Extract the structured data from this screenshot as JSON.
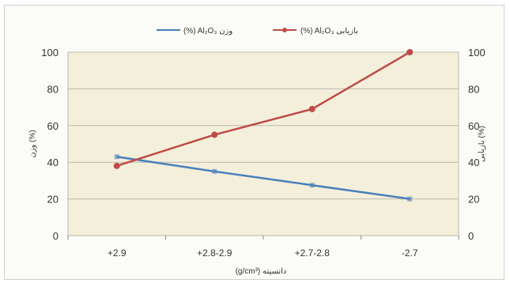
{
  "chart_data": {
    "type": "line",
    "categories": [
      "+2.9",
      "+2.8-2.9",
      "+2.7-2.8",
      "-2.7"
    ],
    "series": [
      {
        "name": "(%) Al₂O₃ وزن",
        "axis": "left",
        "color": "#4a7ebb",
        "values": [
          43,
          35,
          27.5,
          20
        ]
      },
      {
        "name": "(%) Al₂O₃ بازیابی",
        "axis": "right",
        "color": "#be4b48",
        "values": [
          38,
          55,
          69,
          100
        ]
      }
    ],
    "ylim_left": [
      0,
      100
    ],
    "ylim_right": [
      0,
      100
    ],
    "yticks": [
      "0",
      "20",
      "40",
      "60",
      "80",
      "100"
    ],
    "xlabel": "(g/cm³) دانسیته",
    "ylabel_left": "وزن (%)",
    "ylabel_right": "بازیابی (%)",
    "legend_position": "top",
    "grid": true,
    "plot_background": "#f3efdb",
    "grid_color": "#bdb9ad"
  }
}
